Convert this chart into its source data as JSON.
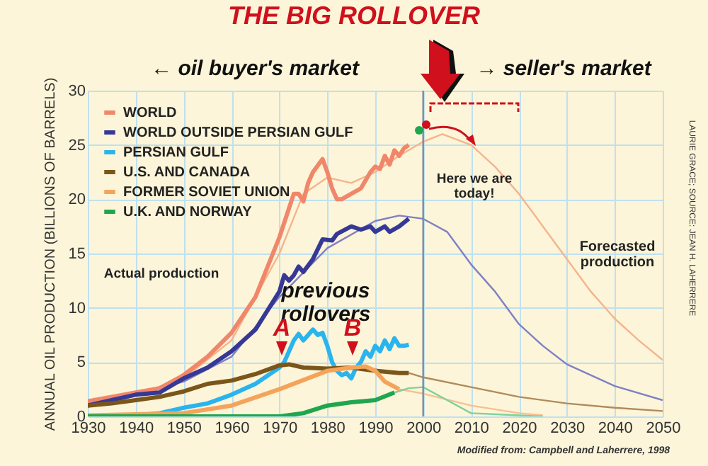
{
  "chart_data": {
    "type": "line",
    "title": "THE BIG ROLLOVER",
    "ylabel": "ANNUAL OIL PRODUCTION (BILLIONS OF BARRELS)",
    "xlim": [
      1930,
      2050
    ],
    "xticks": [
      1930,
      1940,
      1950,
      1960,
      1970,
      1980,
      1990,
      2000,
      2010,
      2020,
      2030,
      2040,
      2050
    ],
    "ylim": [
      0,
      30
    ],
    "yticks": [
      0,
      5,
      10,
      15,
      20,
      25,
      30
    ],
    "grid": true,
    "legend": "top left",
    "series": [
      {
        "name": "WORLD",
        "color": "#f0876a",
        "x": [
          1930,
          1935,
          1940,
          1945,
          1950,
          1955,
          1960,
          1965,
          1970,
          1973,
          1974,
          1975,
          1976,
          1977,
          1979,
          1980,
          1981,
          1982,
          1983,
          1985,
          1987,
          1989,
          1990,
          1991,
          1992,
          1993,
          1994,
          1995,
          1996,
          1997
        ],
        "values": [
          1.4,
          1.8,
          2.2,
          2.6,
          3.8,
          5.5,
          7.7,
          11,
          16.5,
          20.5,
          20.5,
          19.8,
          21.5,
          22.5,
          23.7,
          22.5,
          21,
          20,
          20,
          20.5,
          21,
          22.5,
          23,
          22.8,
          24,
          23.2,
          24.5,
          24,
          24.7,
          25
        ]
      },
      {
        "name": "WORLD OUTSIDE PERSIAN GULF",
        "color": "#363896",
        "x": [
          1930,
          1935,
          1940,
          1945,
          1950,
          1955,
          1960,
          1965,
          1970,
          1971,
          1972,
          1973,
          1974,
          1975,
          1977,
          1979,
          1981,
          1982,
          1985,
          1987,
          1989,
          1990,
          1992,
          1993,
          1995,
          1997
        ],
        "values": [
          1,
          1.5,
          2,
          2.2,
          3.5,
          4.5,
          6,
          8,
          11.5,
          13,
          12.5,
          13,
          13.8,
          13.3,
          14.5,
          16.3,
          16.2,
          16.8,
          17.5,
          17.2,
          17.5,
          17,
          17.5,
          17,
          17.5,
          18.2
        ]
      },
      {
        "name": "PERSIAN GULF",
        "color": "#2ab4ee",
        "x": [
          1930,
          1940,
          1945,
          1950,
          1955,
          1960,
          1965,
          1970,
          1971,
          1972,
          1973,
          1974,
          1975,
          1976,
          1977,
          1978,
          1979,
          1980,
          1981,
          1982,
          1983,
          1984,
          1985,
          1986,
          1987,
          1988,
          1989,
          1990,
          1991,
          1992,
          1993,
          1994,
          1995,
          1996,
          1997
        ],
        "values": [
          0,
          0.1,
          0.3,
          0.8,
          1.2,
          2,
          3,
          4.5,
          5,
          6,
          7,
          7.6,
          7,
          7.5,
          8,
          7.5,
          7.7,
          6.5,
          5,
          4.2,
          3.8,
          4,
          3.5,
          4.5,
          5,
          6,
          5.5,
          6.5,
          6,
          7,
          6.2,
          7.2,
          6.5,
          6.5,
          6.6
        ]
      },
      {
        "name": "U.S. AND CANADA",
        "color": "#7a561a",
        "x": [
          1930,
          1935,
          1940,
          1945,
          1950,
          1955,
          1960,
          1965,
          1970,
          1972,
          1975,
          1980,
          1985,
          1990,
          1995,
          1997
        ],
        "values": [
          1,
          1.2,
          1.5,
          1.8,
          2.3,
          3,
          3.3,
          3.9,
          4.7,
          4.8,
          4.5,
          4.4,
          4.5,
          4.2,
          4,
          4
        ]
      },
      {
        "name": "FORMER SOVIET UNION",
        "color": "#f4a45a",
        "x": [
          1930,
          1940,
          1950,
          1960,
          1970,
          1980,
          1985,
          1988,
          1990,
          1992,
          1995
        ],
        "values": [
          0.1,
          0.2,
          0.3,
          1,
          2.5,
          4.2,
          4.5,
          4.6,
          4.2,
          3.2,
          2.5
        ]
      },
      {
        "name": "U.K. AND NORWAY",
        "color": "#1fa64e",
        "x": [
          1930,
          1970,
          1975,
          1980,
          1985,
          1990,
          1994
        ],
        "values": [
          0,
          0,
          0.3,
          1,
          1.3,
          1.5,
          2.2
        ]
      },
      {
        "color": "#f5b48c",
        "x": [
          1930,
          1940,
          1950,
          1960,
          1970,
          1975,
          1980,
          1985,
          1990,
          1995,
          2000,
          2004,
          2010,
          2015,
          2020,
          2025,
          2030,
          2035,
          2040,
          2045,
          2050
        ],
        "values": [
          1.2,
          2,
          3.5,
          7,
          15,
          20.5,
          22,
          21.5,
          22.5,
          24,
          25.3,
          26,
          25,
          23,
          20.5,
          17.5,
          14.5,
          11.5,
          9,
          7,
          5.2
        ]
      },
      {
        "color": "#7f80c4",
        "x": [
          1930,
          1950,
          1960,
          1970,
          1980,
          1990,
          1995,
          2000,
          2005,
          2010,
          2015,
          2020,
          2025,
          2030,
          2040,
          2050
        ],
        "values": [
          0.9,
          3.2,
          5.5,
          11,
          15.5,
          18,
          18.5,
          18.2,
          17,
          14,
          11.5,
          8.5,
          6.5,
          4.8,
          2.8,
          1.5
        ]
      },
      {
        "color": "#b08a5a",
        "x": [
          1997,
          2000,
          2010,
          2020,
          2030,
          2040,
          2050
        ],
        "values": [
          4,
          3.6,
          2.7,
          1.8,
          1.2,
          0.8,
          0.5
        ]
      },
      {
        "color": "#f7c08e",
        "x": [
          1995,
          2000,
          2010,
          2020,
          2025
        ],
        "values": [
          2.5,
          2.1,
          1,
          0.3,
          0.1
        ]
      },
      {
        "color": "#7fd09a",
        "x": [
          1994,
          1997,
          2000,
          2005,
          2010,
          2020,
          2025
        ],
        "values": [
          2.2,
          2.6,
          2.7,
          1.5,
          0.3,
          0.1,
          0
        ]
      }
    ],
    "ref_lines": [
      {
        "axis": "x",
        "value": 2000,
        "color": "#7f8a99"
      }
    ],
    "annotations": [
      "← oil buyer's market",
      "→ seller's market",
      "Here we are today!",
      "Actual production",
      "Forecasted production",
      "previous rollovers",
      "A",
      "B",
      "LAURIE GRACE; SOURCE: JEAN H. LAHERRERE",
      "Modified from: Campbell and Laherrere, 1998"
    ]
  }
}
